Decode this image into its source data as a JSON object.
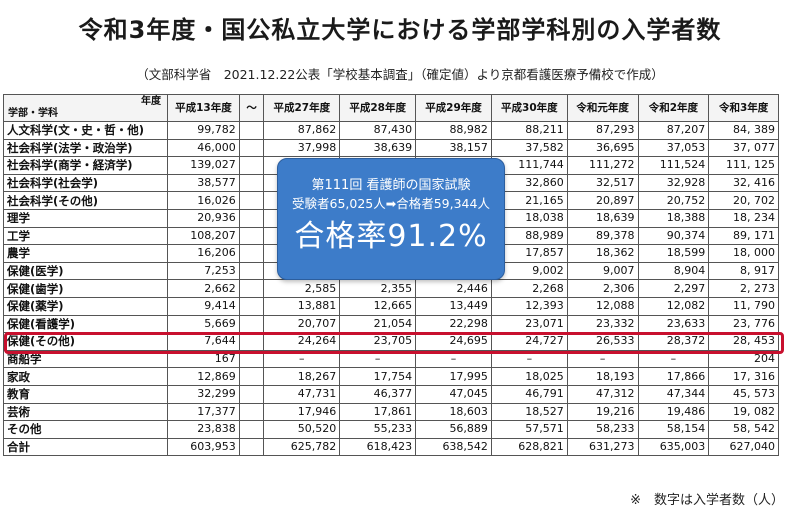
{
  "title": "令和3年度・国公私立大学における学部学科別の入学者数",
  "subtitle": "（文部科学省　2021.12.22公表「学校基本調査」（確定値）より京都看護医療予備校で作成）",
  "table": {
    "corner_year": "年度",
    "corner_dept": "学部・学科",
    "columns": [
      "平成13年度",
      "〜",
      "平成27年度",
      "平成28年度",
      "平成29年度",
      "平成30年度",
      "令和元年度",
      "令和2年度",
      "令和3年度"
    ],
    "rows": [
      {
        "dept": "人文科学(文・史・哲・他)",
        "values": [
          "99,782",
          "",
          "87,862",
          "87,430",
          "88,982",
          "88,211",
          "87,293",
          "87,207",
          "84, 389"
        ]
      },
      {
        "dept": "社会科学(法学・政治学)",
        "values": [
          "46,000",
          "",
          "37,998",
          "38,639",
          "38,157",
          "37,582",
          "36,695",
          "37,053",
          "37, 077"
        ]
      },
      {
        "dept": "社会科学(商学・経済学)",
        "values": [
          "139,027",
          "",
          "",
          "",
          "",
          "111,744",
          "111,272",
          "111,524",
          "111, 125"
        ]
      },
      {
        "dept": "社会科学(社会学)",
        "values": [
          "38,577",
          "",
          "",
          "",
          "",
          "32,860",
          "32,517",
          "32,928",
          "32, 416"
        ]
      },
      {
        "dept": "社会科学(その他)",
        "values": [
          "16,026",
          "",
          "",
          "",
          "",
          "21,165",
          "20,897",
          "20,752",
          "20, 702"
        ]
      },
      {
        "dept": "理学",
        "values": [
          "20,936",
          "",
          "",
          "",
          "",
          "18,038",
          "18,639",
          "18,388",
          "18, 234"
        ]
      },
      {
        "dept": "工学",
        "values": [
          "108,207",
          "",
          "",
          "",
          "",
          "88,989",
          "89,378",
          "90,374",
          "89, 171"
        ]
      },
      {
        "dept": "農学",
        "values": [
          "16,206",
          "",
          "",
          "",
          "",
          "17,857",
          "18,362",
          "18,599",
          "18, 000"
        ]
      },
      {
        "dept": "保健(医学)",
        "values": [
          "7,253",
          "",
          "9,086",
          "8,858",
          "9,399",
          "9,002",
          "9,007",
          "8,904",
          "8, 917"
        ]
      },
      {
        "dept": "保健(歯学)",
        "values": [
          "2,662",
          "",
          "2,585",
          "2,355",
          "2,446",
          "2,268",
          "2,306",
          "2,297",
          "2, 273"
        ]
      },
      {
        "dept": "保健(薬学)",
        "values": [
          "9,414",
          "",
          "13,881",
          "12,665",
          "13,449",
          "12,393",
          "12,088",
          "12,082",
          "11, 790"
        ]
      },
      {
        "dept": "保健(看護学)",
        "values": [
          "5,669",
          "",
          "20,707",
          "21,054",
          "22,298",
          "23,071",
          "23,332",
          "23,633",
          "23, 776"
        ]
      },
      {
        "dept": "保健(その他)",
        "values": [
          "7,644",
          "",
          "24,264",
          "23,705",
          "24,695",
          "24,727",
          "26,533",
          "28,372",
          "28, 453"
        ]
      },
      {
        "dept": "商船学",
        "values": [
          "167",
          "",
          "–",
          "–",
          "–",
          "–",
          "–",
          "–",
          "204"
        ]
      },
      {
        "dept": "家政",
        "values": [
          "12,869",
          "",
          "18,267",
          "17,754",
          "17,995",
          "18,025",
          "18,193",
          "17,866",
          "17, 316"
        ]
      },
      {
        "dept": "教育",
        "values": [
          "32,299",
          "",
          "47,731",
          "46,377",
          "47,045",
          "46,791",
          "47,312",
          "47,344",
          "45, 573"
        ]
      },
      {
        "dept": "芸術",
        "values": [
          "17,377",
          "",
          "17,946",
          "17,861",
          "18,603",
          "18,527",
          "19,216",
          "19,486",
          "19, 082"
        ]
      },
      {
        "dept": "その他",
        "values": [
          "23,838",
          "",
          "50,520",
          "55,233",
          "56,889",
          "57,571",
          "58,233",
          "58,154",
          "58, 542"
        ]
      },
      {
        "dept": "合計",
        "values": [
          "603,953",
          "",
          "625,782",
          "618,423",
          "638,542",
          "628,821",
          "631,273",
          "635,003",
          "627,040"
        ]
      }
    ]
  },
  "callout": {
    "line1": "第111回 看護師の国家試験",
    "line2": "受験者65,025人➡合格者59,344人",
    "line3": "合格率91.2%"
  },
  "footnote": "※　数字は入学者数（人）",
  "colors": {
    "highlight": "#c8102e",
    "callout_bg": "#3d7cc9"
  }
}
